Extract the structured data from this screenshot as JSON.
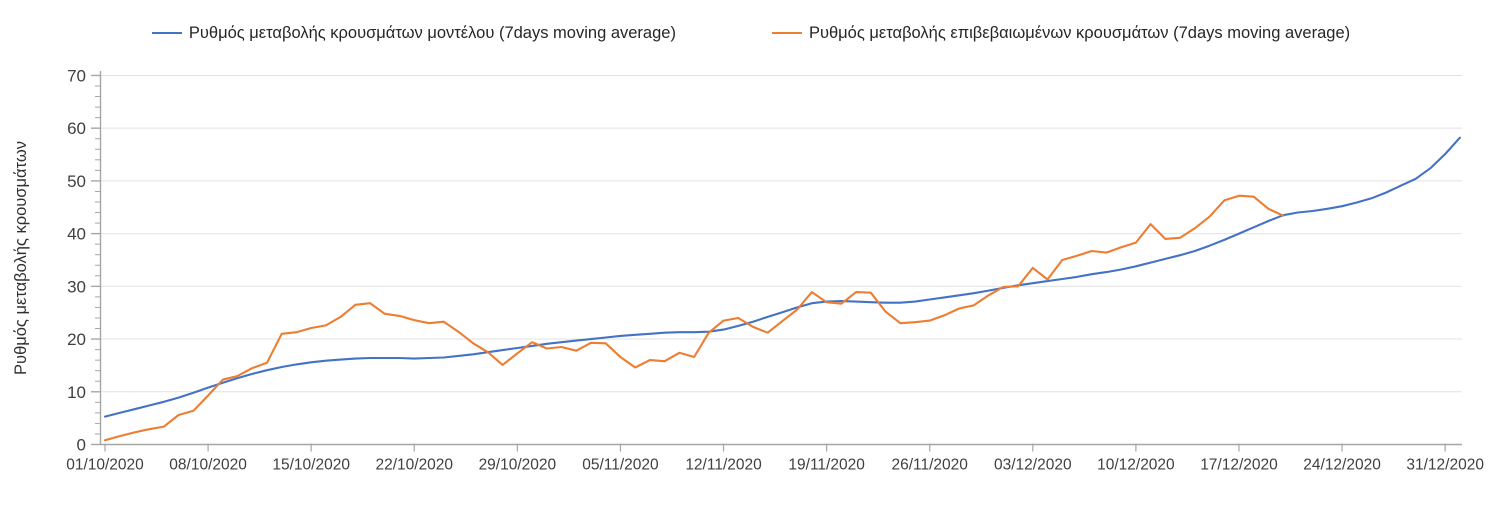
{
  "chart_data": {
    "type": "line",
    "title": "",
    "xlabel": "",
    "ylabel": "Ρυθμός μεταβολής κρουσμάτων",
    "ylim": [
      0,
      70
    ],
    "y_major_ticks": [
      0,
      10,
      20,
      30,
      40,
      50,
      60,
      70
    ],
    "y_minor_tick_step": 2,
    "grid": "horizontal-major",
    "legend_position": "top",
    "x_unit": "days",
    "x_start_date": "01/10/2020",
    "x_tick_interval_days": 7,
    "x_tick_labels": [
      "01/10/2020",
      "08/10/2020",
      "15/10/2020",
      "22/10/2020",
      "29/10/2020",
      "05/11/2020",
      "12/11/2020",
      "19/11/2020",
      "26/11/2020",
      "03/12/2020",
      "10/12/2020",
      "17/12/2020",
      "24/12/2020",
      "31/12/2020"
    ],
    "series": [
      {
        "name": "Ρυθμός μεταβολής κρουσμάτων μοντέλου (7days moving average)",
        "color": "#4472C4",
        "start_day": 0,
        "end_date": "01/01/2021",
        "values": [
          5.3,
          6.0,
          6.7,
          7.4,
          8.1,
          8.9,
          9.8,
          10.8,
          11.7,
          12.6,
          13.4,
          14.1,
          14.7,
          15.2,
          15.6,
          15.9,
          16.1,
          16.3,
          16.4,
          16.4,
          16.4,
          16.3,
          16.4,
          16.5,
          16.8,
          17.1,
          17.5,
          17.9,
          18.3,
          18.7,
          19.1,
          19.4,
          19.7,
          20.0,
          20.3,
          20.6,
          20.8,
          21.0,
          21.2,
          21.3,
          21.3,
          21.4,
          21.8,
          22.5,
          23.3,
          24.2,
          25.1,
          26.0,
          26.8,
          27.1,
          27.2,
          27.1,
          27.0,
          26.9,
          26.9,
          27.1,
          27.5,
          27.9,
          28.3,
          28.7,
          29.2,
          29.7,
          30.2,
          30.6,
          31.0,
          31.4,
          31.8,
          32.3,
          32.7,
          33.2,
          33.8,
          34.5,
          35.2,
          35.9,
          36.7,
          37.7,
          38.8,
          40.0,
          41.2,
          42.4,
          43.5,
          44.0,
          44.3,
          44.7,
          45.2,
          45.9,
          46.7,
          47.8,
          49.1,
          50.4,
          52.4,
          55.1,
          58.2
        ]
      },
      {
        "name": "Ρυθμός μεταβολής επιβεβαιωμένων κρουσμάτων (7days moving average)",
        "color": "#ED7D31",
        "start_day": 0,
        "end_date": "20/12/2020",
        "values": [
          0.8,
          1.6,
          2.3,
          2.9,
          3.4,
          5.6,
          6.4,
          9.3,
          12.3,
          13.0,
          14.5,
          15.5,
          21.0,
          21.3,
          22.1,
          22.6,
          24.2,
          26.5,
          26.8,
          24.8,
          24.4,
          23.6,
          23.0,
          23.3,
          21.4,
          19.2,
          17.5,
          15.1,
          17.3,
          19.4,
          18.2,
          18.5,
          17.8,
          19.3,
          19.2,
          16.6,
          14.6,
          16.0,
          15.8,
          17.4,
          16.6,
          21.2,
          23.5,
          24.0,
          22.3,
          21.2,
          23.4,
          25.6,
          28.9,
          27.0,
          26.7,
          28.9,
          28.8,
          25.2,
          23.0,
          23.2,
          23.5,
          24.5,
          25.8,
          26.4,
          28.3,
          29.9,
          30.0,
          33.5,
          31.3,
          35.0,
          35.8,
          36.7,
          36.4,
          37.4,
          38.3,
          41.8,
          39.0,
          39.2,
          41.0,
          43.2,
          46.3,
          47.2,
          47.0,
          44.7,
          43.4
        ]
      }
    ],
    "colors": {
      "model_line": "#4472C4",
      "confirmed_line": "#ED7D31",
      "gridline": "#E2E2E2",
      "axis": "#A6A6A6",
      "tick_text": "#404040"
    }
  }
}
